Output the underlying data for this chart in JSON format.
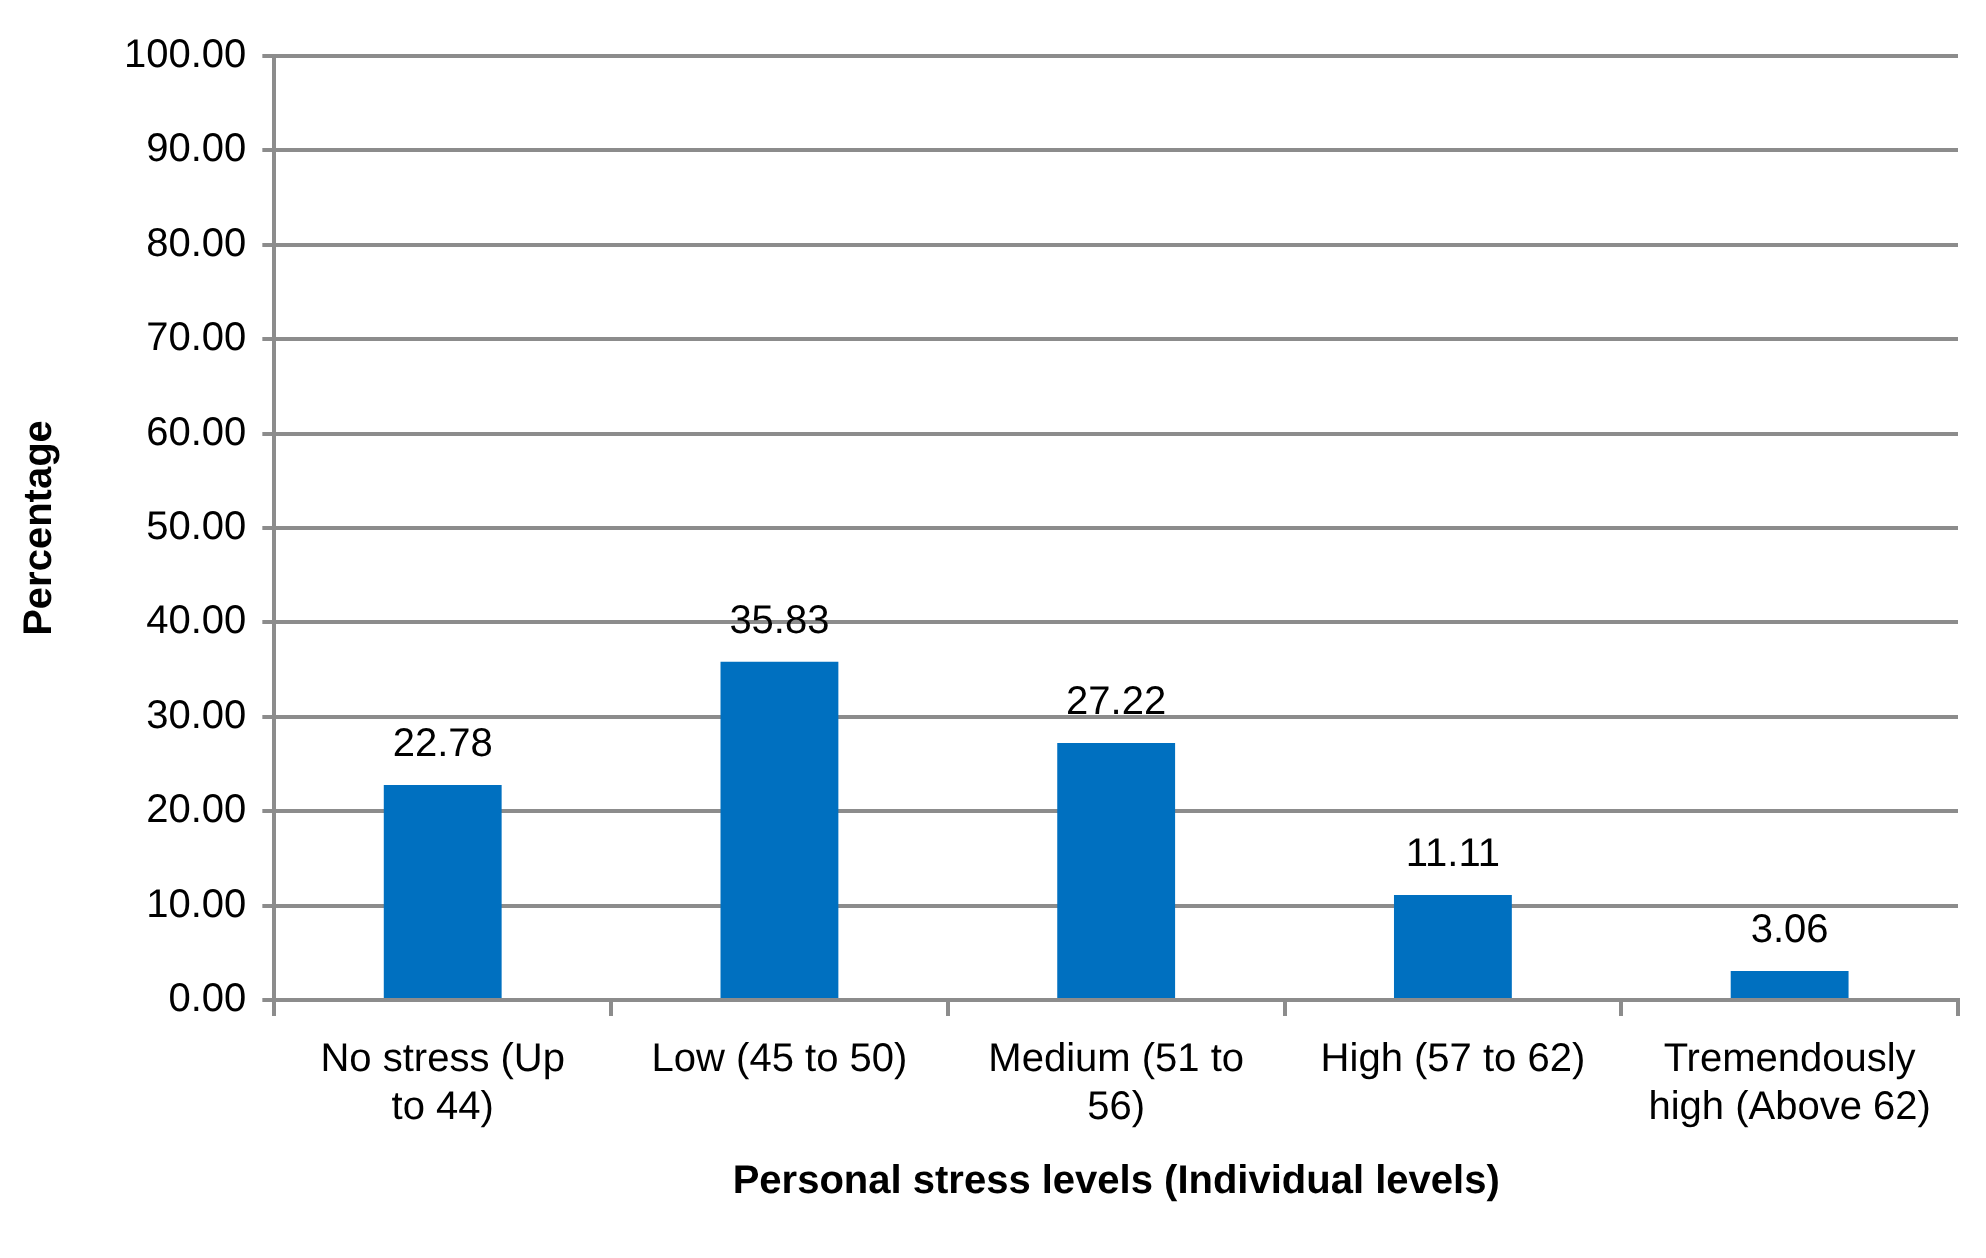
{
  "chart_data": {
    "type": "bar",
    "categories": [
      "No stress (Up to 44)",
      "Low (45 to 50)",
      "Medium (51 to 56)",
      "High (57 to 62)",
      "Tremendously high (Above 62)"
    ],
    "values": [
      22.78,
      35.83,
      27.22,
      11.11,
      3.06
    ],
    "color": "#0070c0",
    "data_labels": true,
    "xlabel": "Personal stress levels (Individual levels)",
    "ylabel": "Percentage",
    "ylim": [
      0,
      100
    ],
    "yticks": [
      {
        "value": 0,
        "label": "0.00"
      },
      {
        "value": 10,
        "label": "10.00"
      },
      {
        "value": 20,
        "label": "20.00"
      },
      {
        "value": 30,
        "label": "30.00"
      },
      {
        "value": 40,
        "label": "40.00"
      },
      {
        "value": 50,
        "label": "50.00"
      },
      {
        "value": 60,
        "label": "60.00"
      },
      {
        "value": 70,
        "label": "70.00"
      },
      {
        "value": 80,
        "label": "80.00"
      },
      {
        "value": 90,
        "label": "90.00"
      },
      {
        "value": 100,
        "label": "100.00"
      }
    ],
    "grid": "y",
    "legend": false
  }
}
